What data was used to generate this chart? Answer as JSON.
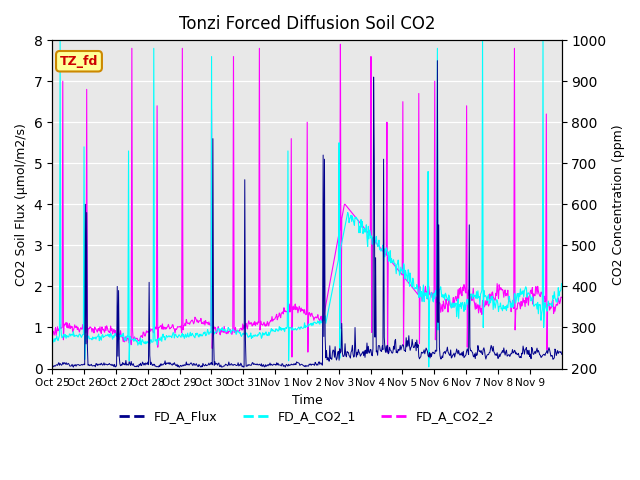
{
  "title": "Tonzi Forced Diffusion Soil CO2",
  "xlabel": "Time",
  "ylabel_left": "CO2 Soil Flux (μmol/m2/s)",
  "ylabel_right": "CO2 Concentration (ppm)",
  "ylim_left": [
    0.0,
    8.0
  ],
  "ylim_right": [
    200,
    1000
  ],
  "yticks_left": [
    0.0,
    1.0,
    2.0,
    3.0,
    4.0,
    5.0,
    6.0,
    7.0,
    8.0
  ],
  "yticks_right": [
    200,
    300,
    400,
    500,
    600,
    700,
    800,
    900,
    1000
  ],
  "color_flux": "#00008B",
  "color_co2_1": "#00FFFF",
  "color_co2_2": "#FF00FF",
  "legend_labels": [
    "FD_A_Flux",
    "FD_A_CO2_1",
    "FD_A_CO2_2"
  ],
  "tag_text": "TZ_fd",
  "tag_facecolor": "#FFFF99",
  "tag_edgecolor": "#CC8800",
  "tag_textcolor": "#CC0000",
  "background_color": "#E8E8E8",
  "xtick_labels": [
    "Oct 25",
    "Oct 26",
    "Oct 27",
    "Oct 28",
    "Oct 29",
    "Oct 30",
    "Oct 31",
    "Nov 1",
    "Nov 2",
    "Nov 3",
    "Nov 4",
    "Nov 5",
    "Nov 6",
    "Nov 7",
    "Nov 8",
    "Nov 9"
  ]
}
